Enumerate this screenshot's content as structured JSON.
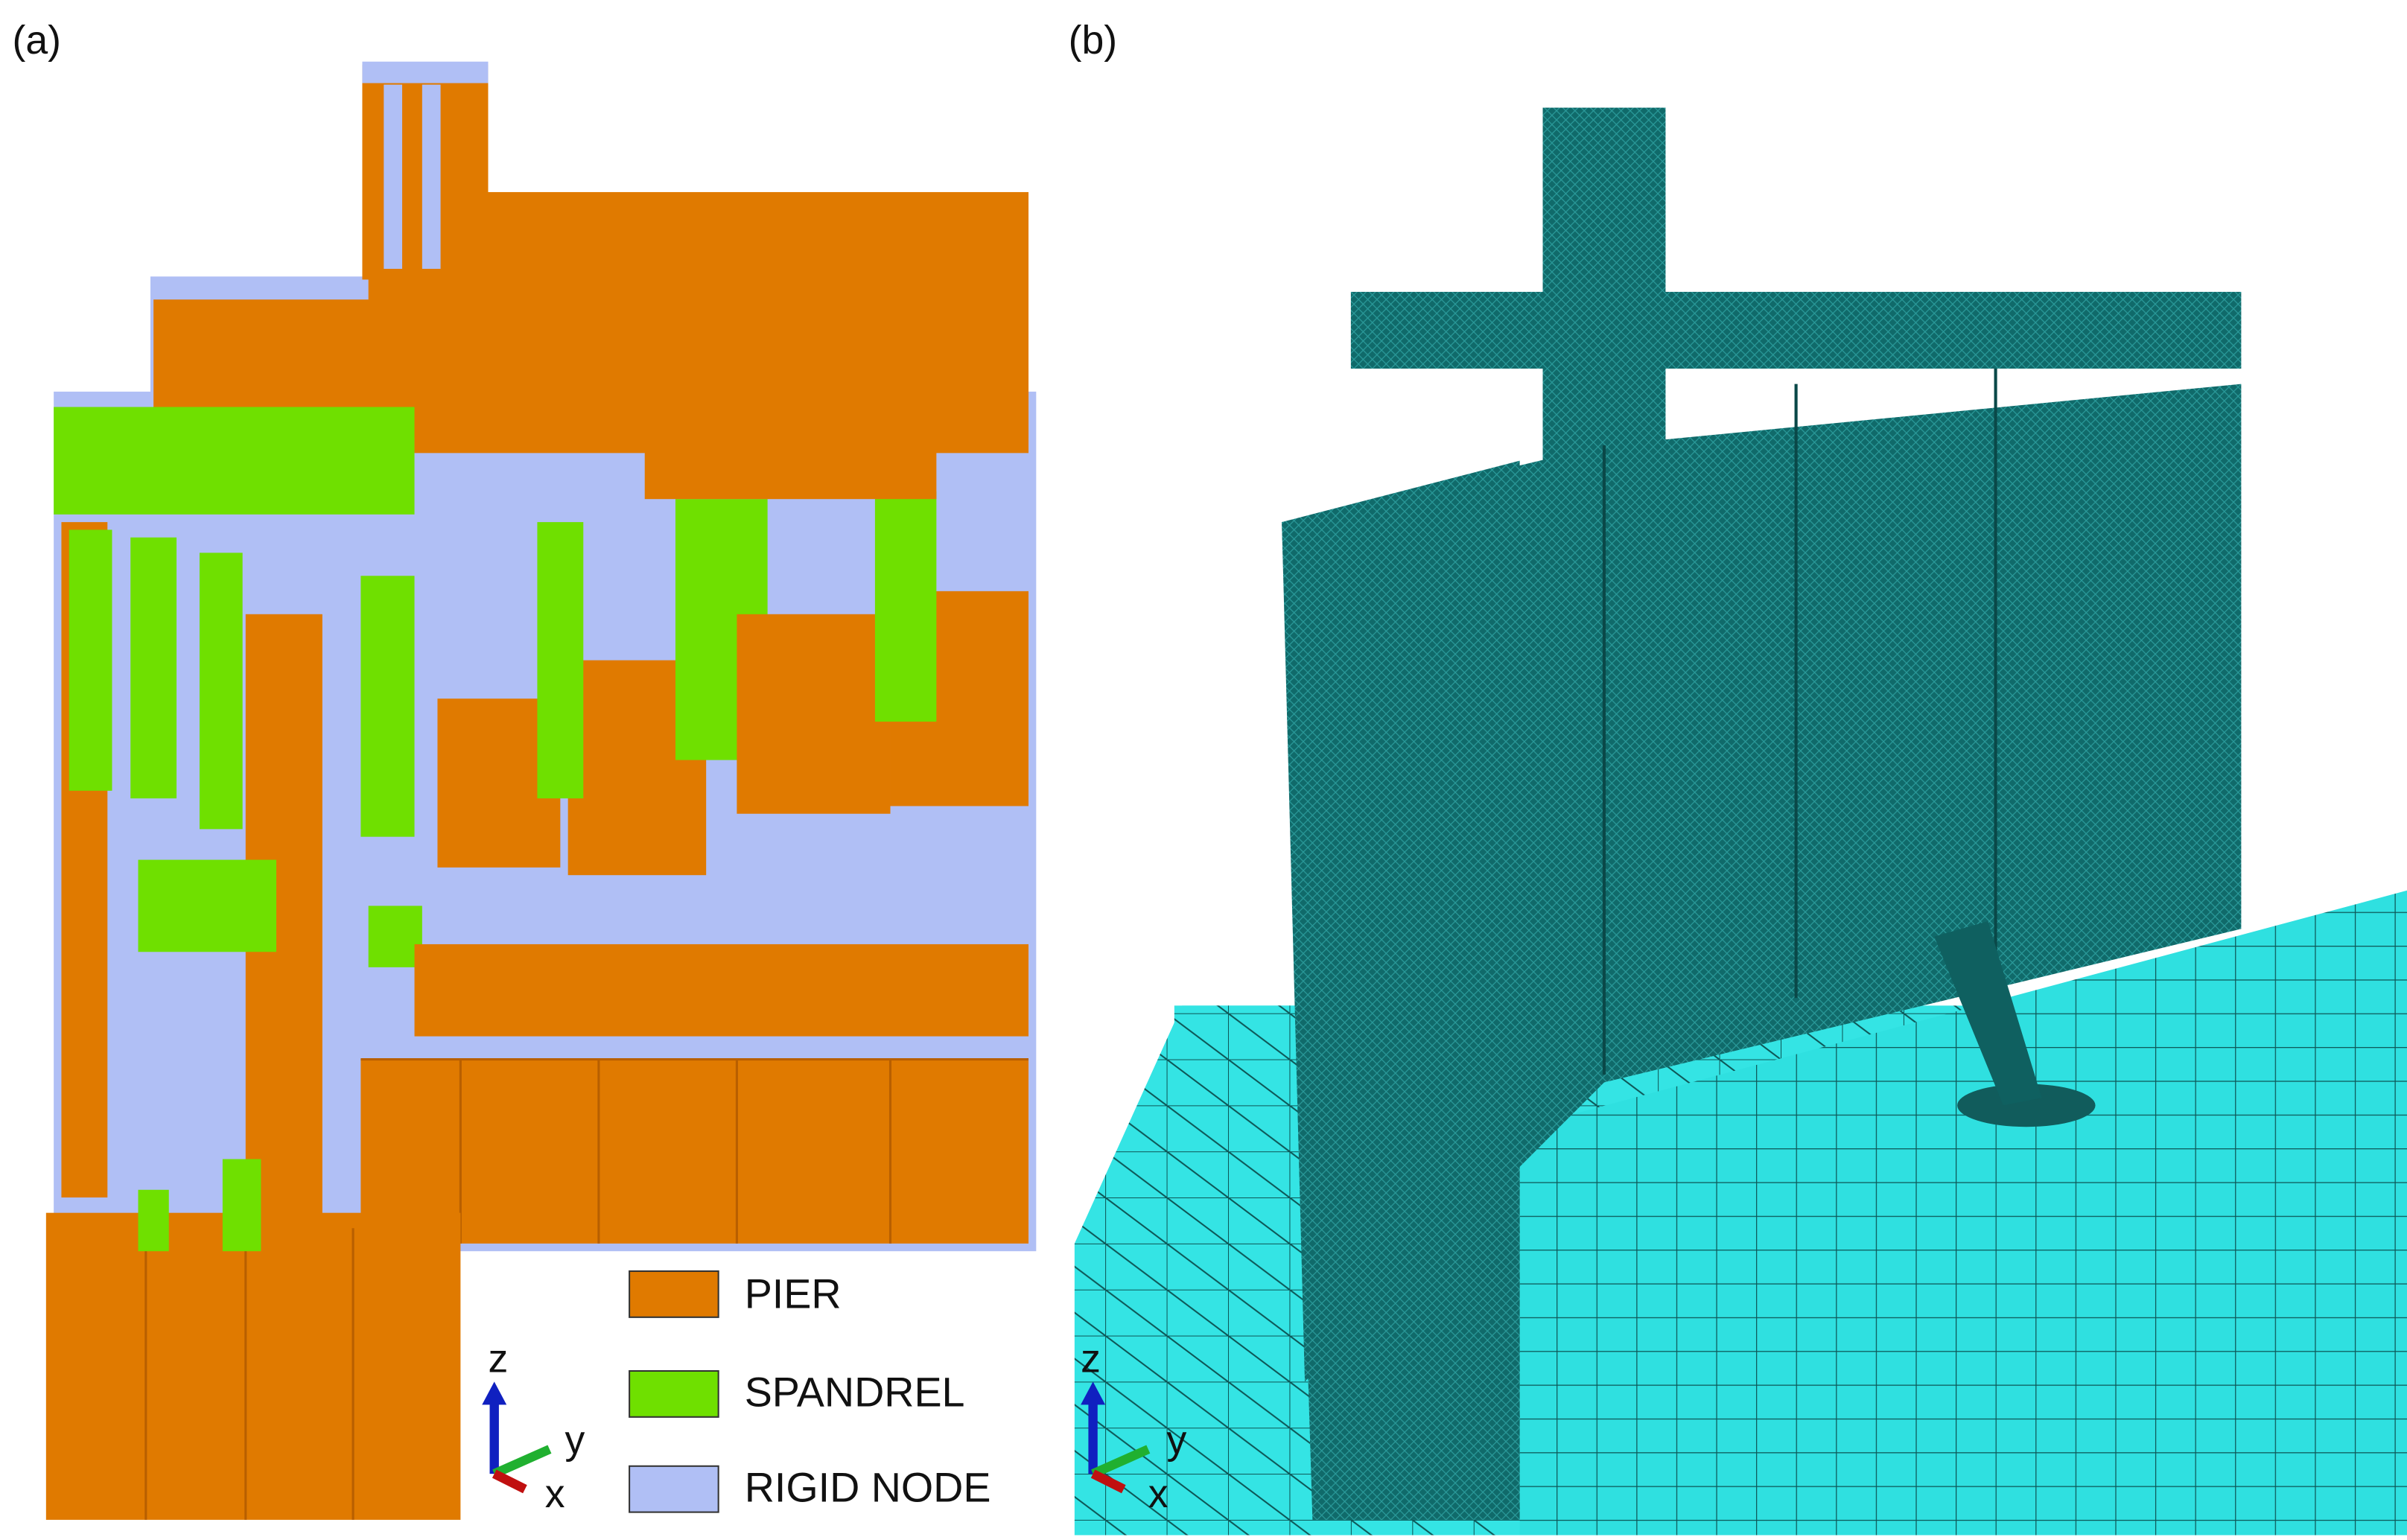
{
  "panels": [
    {
      "label": "(a)",
      "legend": [
        "PIER",
        "SPANDREL",
        "RIGID NODE"
      ],
      "axes": {
        "z": "z",
        "y": "y",
        "x": "x"
      }
    },
    {
      "label": "(b)",
      "axes": {
        "z": "z",
        "y": "y",
        "x": "x"
      }
    }
  ]
}
